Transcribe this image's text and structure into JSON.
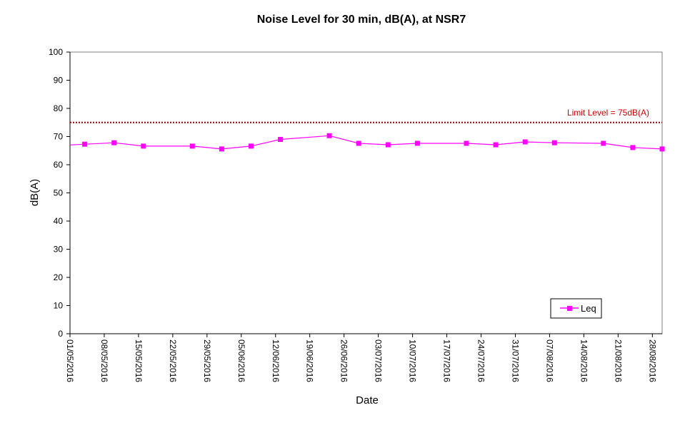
{
  "chart_data": {
    "type": "line",
    "title": "Noise Level for 30 min, dB(A), at NSR7",
    "xlabel": "Date",
    "ylabel": "dB(A)",
    "ylim": [
      0,
      100
    ],
    "yticks": [
      0,
      10,
      20,
      30,
      40,
      50,
      60,
      70,
      80,
      90,
      100
    ],
    "xlim": [
      "2016-05-01",
      "2016-08-30"
    ],
    "xtick_labels": [
      "01/05/2016",
      "08/05/2016",
      "15/05/2016",
      "22/05/2016",
      "29/05/2016",
      "05/06/2016",
      "12/06/2016",
      "19/06/2016",
      "26/06/2016",
      "03/07/2016",
      "10/07/2016",
      "17/07/2016",
      "24/07/2016",
      "31/07/2016",
      "07/08/2016",
      "14/08/2016",
      "21/08/2016",
      "28/08/2016"
    ],
    "xtick_dates": [
      "2016-05-01",
      "2016-05-08",
      "2016-05-15",
      "2016-05-22",
      "2016-05-29",
      "2016-06-05",
      "2016-06-12",
      "2016-06-19",
      "2016-06-26",
      "2016-07-03",
      "2016-07-10",
      "2016-07-17",
      "2016-07-24",
      "2016-07-31",
      "2016-08-07",
      "2016-08-14",
      "2016-08-21",
      "2016-08-28"
    ],
    "grid": false,
    "legend_position": "bottom-right",
    "series": [
      {
        "name": "Leq",
        "color": "#FF00FF",
        "marker": "square",
        "x": [
          "2016-05-04",
          "2016-05-10",
          "2016-05-16",
          "2016-05-26",
          "2016-06-01",
          "2016-06-07",
          "2016-06-13",
          "2016-06-23",
          "2016-06-29",
          "2016-07-05",
          "2016-07-11",
          "2016-07-21",
          "2016-07-27",
          "2016-08-02",
          "2016-08-08",
          "2016-08-18",
          "2016-08-24",
          "2016-08-30"
        ],
        "values": [
          67.3,
          67.8,
          66.6,
          66.6,
          65.6,
          66.6,
          69.0,
          70.3,
          67.6,
          67.1,
          67.6,
          67.6,
          67.1,
          68.1,
          67.8,
          67.6,
          66.1,
          65.6
        ]
      }
    ],
    "line_start": {
      "x": "2016-05-01",
      "value": 67.0
    },
    "reference_line": {
      "value": 75,
      "label": "Limit Level  = 75dB(A)",
      "color": "#990000",
      "label_color": "#CC0000",
      "style": "dotted"
    }
  }
}
